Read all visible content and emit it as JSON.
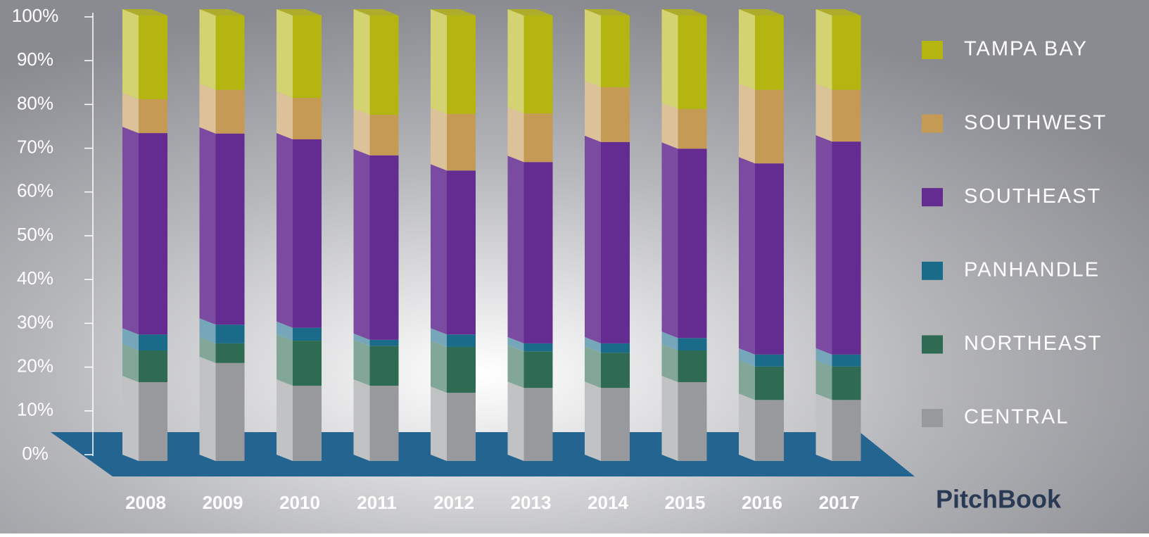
{
  "chart_data": {
    "type": "stacked_bar_3d",
    "categories": [
      "2008",
      "2009",
      "2010",
      "2011",
      "2012",
      "2013",
      "2014",
      "2015",
      "2016",
      "2017"
    ],
    "series": [
      {
        "name": "CENTRAL",
        "color": "#98999c",
        "values": [
          17.7,
          22.0,
          16.9,
          16.9,
          15.3,
          16.4,
          16.4,
          17.7,
          13.7,
          13.7
        ]
      },
      {
        "name": "NORTHEAST",
        "color": "#2f6b52",
        "values": [
          7.1,
          4.4,
          10.1,
          8.9,
          10.3,
          8.2,
          7.9,
          7.1,
          7.5,
          7.5
        ]
      },
      {
        "name": "PANHANDLE",
        "color": "#1a6b8a",
        "values": [
          3.6,
          4.2,
          2.9,
          1.4,
          2.8,
          1.8,
          2.1,
          2.8,
          2.7,
          2.7
        ]
      },
      {
        "name": "SOUTHEAST",
        "color": "#642b90",
        "values": [
          45.2,
          42.9,
          42.3,
          41.4,
          36.8,
          40.7,
          45.2,
          42.5,
          42.9,
          47.8
        ]
      },
      {
        "name": "SOUTHWEST",
        "color": "#c49a55",
        "values": [
          7.6,
          9.8,
          9.3,
          9.1,
          12.7,
          10.9,
          12.3,
          8.9,
          16.5,
          11.6
        ]
      },
      {
        "name": "TAMPA BAY",
        "color": "#b5b512",
        "values": [
          18.8,
          16.7,
          18.5,
          22.3,
          22.1,
          22.0,
          16.1,
          21.0,
          16.7,
          16.7
        ]
      }
    ],
    "ylim": [
      0,
      100
    ],
    "yticks": [
      {
        "value": 0,
        "label": "0%"
      },
      {
        "value": 10,
        "label": "10%"
      },
      {
        "value": 20,
        "label": "20%"
      },
      {
        "value": 30,
        "label": "30%"
      },
      {
        "value": 40,
        "label": "40%"
      },
      {
        "value": 50,
        "label": "50%"
      },
      {
        "value": 60,
        "label": "60%"
      },
      {
        "value": 70,
        "label": "70%"
      },
      {
        "value": 80,
        "label": "80%"
      },
      {
        "value": 90,
        "label": "90%"
      },
      {
        "value": 100,
        "label": "100%"
      }
    ],
    "legend": "right",
    "watermark": "PitchBook"
  }
}
